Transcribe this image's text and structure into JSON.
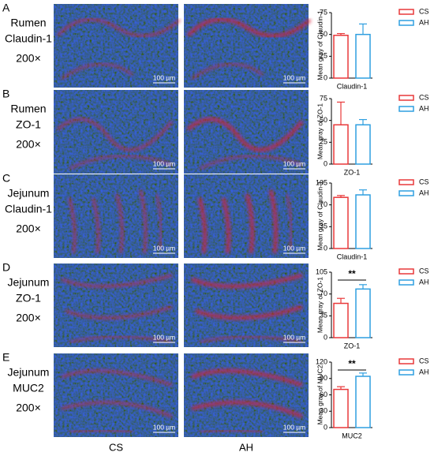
{
  "panels": [
    {
      "letter": "A",
      "tissue": "Rumen",
      "protein": "Claudin-1",
      "magnification": "200×",
      "scale_bar": "100 µm"
    },
    {
      "letter": "B",
      "tissue": "Rumen",
      "protein": "ZO-1",
      "magnification": "200×",
      "scale_bar": "100 µm"
    },
    {
      "letter": "C",
      "tissue": "Jejunum",
      "protein": "Claudin-1",
      "magnification": "200×",
      "scale_bar": "100 µm"
    },
    {
      "letter": "D",
      "tissue": "Jejunum",
      "protein": "ZO-1",
      "magnification": "200×",
      "scale_bar": "100 µm"
    },
    {
      "letter": "E",
      "tissue": "Jejunum",
      "protein": "MUC2",
      "magnification": "200×",
      "scale_bar": "100 µm"
    }
  ],
  "column_labels": [
    "CS",
    "AH"
  ],
  "chart_data": [
    {
      "type": "bar",
      "y_label": "Mean gray of Claudin-1",
      "categories": [
        "Claudin-1"
      ],
      "ylim": [
        0,
        75
      ],
      "yticks": [
        0,
        25,
        50,
        75
      ],
      "series": [
        {
          "name": "CS",
          "color": "#e8393a",
          "values": [
            49
          ],
          "errors": [
            2
          ]
        },
        {
          "name": "AH",
          "color": "#2f9fe0",
          "values": [
            50
          ],
          "errors": [
            12
          ]
        }
      ]
    },
    {
      "type": "bar",
      "y_label": "Mean gray of ZO-1",
      "categories": [
        "ZO-1"
      ],
      "ylim": [
        0,
        75
      ],
      "yticks": [
        0,
        25,
        50,
        75
      ],
      "series": [
        {
          "name": "CS",
          "color": "#e8393a",
          "values": [
            45
          ],
          "errors": [
            26
          ]
        },
        {
          "name": "AH",
          "color": "#2f9fe0",
          "values": [
            45
          ],
          "errors": [
            6
          ]
        }
      ]
    },
    {
      "type": "bar",
      "y_label": "Mean gray of Claudin-1",
      "categories": [
        "Claudin-1"
      ],
      "ylim": [
        0,
        105
      ],
      "yticks": [
        0,
        35,
        70,
        105
      ],
      "series": [
        {
          "name": "CS",
          "color": "#e8393a",
          "values": [
            82
          ],
          "errors": [
            3
          ]
        },
        {
          "name": "AH",
          "color": "#2f9fe0",
          "values": [
            86
          ],
          "errors": [
            8
          ]
        }
      ]
    },
    {
      "type": "bar",
      "y_label": "Mean gray of ZO-1",
      "categories": [
        "ZO-1"
      ],
      "ylim": [
        0,
        105
      ],
      "yticks": [
        0,
        35,
        70,
        105
      ],
      "annotation": "**",
      "series": [
        {
          "name": "CS",
          "color": "#e8393a",
          "values": [
            55
          ],
          "errors": [
            8
          ]
        },
        {
          "name": "AH",
          "color": "#2f9fe0",
          "values": [
            78
          ],
          "errors": [
            7
          ]
        }
      ]
    },
    {
      "type": "bar",
      "y_label": "Mean gray of MUC2",
      "categories": [
        "MUC2"
      ],
      "ylim": [
        0,
        120
      ],
      "yticks": [
        0,
        30,
        60,
        90,
        120
      ],
      "annotation": "**",
      "series": [
        {
          "name": "CS",
          "color": "#e8393a",
          "values": [
            70
          ],
          "errors": [
            5
          ]
        },
        {
          "name": "AH",
          "color": "#2f9fe0",
          "values": [
            94
          ],
          "errors": [
            6
          ]
        }
      ]
    }
  ]
}
